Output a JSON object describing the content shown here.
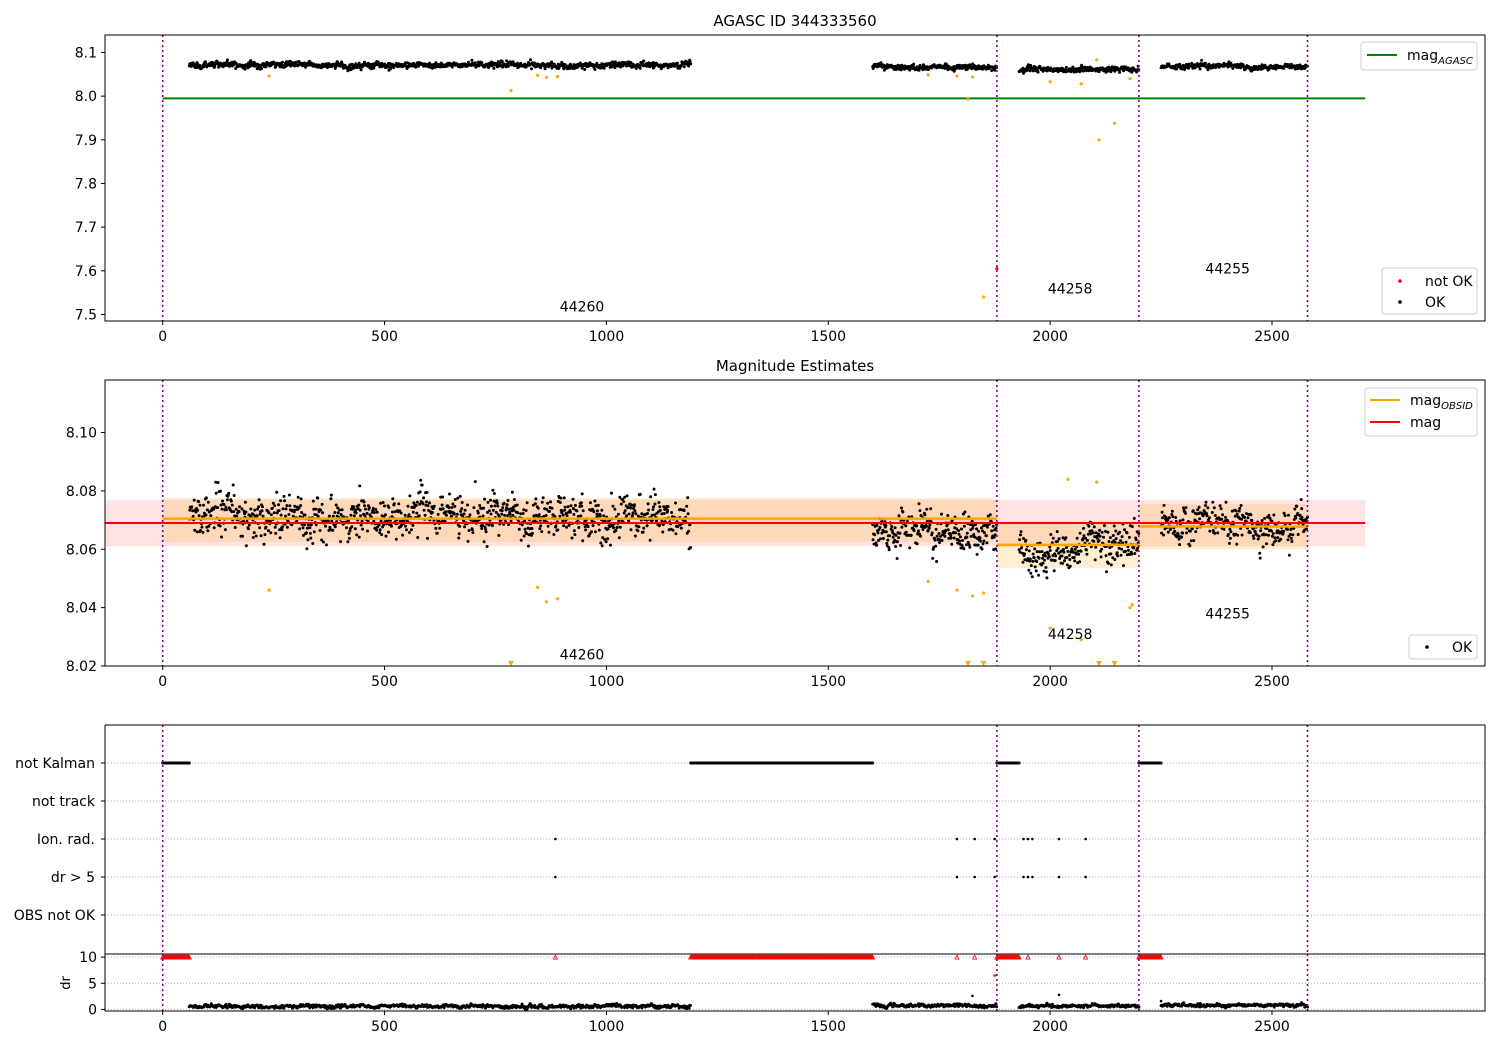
{
  "chart_data": [
    {
      "type": "scatter",
      "title": "AGASC ID 344333560",
      "xlabel": "",
      "ylabel": "",
      "xlim": [
        -130,
        2980
      ],
      "ylim": [
        7.485,
        8.14
      ],
      "xticks": [
        0,
        500,
        1000,
        1500,
        2000,
        2500
      ],
      "yticks": [
        7.5,
        7.6,
        7.7,
        7.8,
        7.9,
        8.0,
        8.1
      ],
      "ytick_labels": [
        "7.5",
        "7.6",
        "7.7",
        "7.8",
        "7.9",
        "8.0",
        "8.1"
      ],
      "obsid_boundaries": [
        0,
        1880,
        2200,
        2580
      ],
      "obsid_labels": [
        {
          "text": "44260",
          "x": 940,
          "y": 7.518
        },
        {
          "text": "44258",
          "x": 2040,
          "y": 7.56
        },
        {
          "text": "44255",
          "x": 2395,
          "y": 7.605
        }
      ],
      "mag_agasc": {
        "value": 7.995,
        "x_range": [
          0,
          2710
        ]
      },
      "ok_segments": [
        {
          "x_start": 60,
          "x_end": 1190,
          "base": 8.071,
          "amp": 0.006
        },
        {
          "x_start": 1600,
          "x_end": 1880,
          "base": 8.066,
          "amp": 0.005
        },
        {
          "x_start": 1930,
          "x_end": 2200,
          "base": 8.061,
          "amp": 0.006
        },
        {
          "x_start": 2250,
          "x_end": 2580,
          "base": 8.068,
          "amp": 0.005
        }
      ],
      "outlier_points": [
        {
          "x": 240,
          "y": 8.046
        },
        {
          "x": 785,
          "y": 8.013
        },
        {
          "x": 845,
          "y": 8.048
        },
        {
          "x": 865,
          "y": 8.043
        },
        {
          "x": 890,
          "y": 8.045
        },
        {
          "x": 1725,
          "y": 8.049
        },
        {
          "x": 1790,
          "y": 8.046
        },
        {
          "x": 1815,
          "y": 7.993
        },
        {
          "x": 1825,
          "y": 8.044
        },
        {
          "x": 1850,
          "y": 7.54
        },
        {
          "x": 2000,
          "y": 8.033
        },
        {
          "x": 2070,
          "y": 8.028
        },
        {
          "x": 2110,
          "y": 7.9
        },
        {
          "x": 2145,
          "y": 7.938
        },
        {
          "x": 2105,
          "y": 8.083
        },
        {
          "x": 2180,
          "y": 8.04
        }
      ],
      "not_ok_points": [
        {
          "x": 1880,
          "y": 7.605
        }
      ],
      "legend_upper": [
        {
          "label": "mag",
          "subscript": "AGASC",
          "color": "#008000"
        }
      ],
      "legend_lower": [
        {
          "label": "not OK",
          "color": "#ff0000"
        },
        {
          "label": "OK",
          "color": "#000000"
        }
      ]
    },
    {
      "type": "scatter",
      "title": "Magnitude Estimates",
      "xlabel": "",
      "ylabel": "",
      "xlim": [
        -130,
        2980
      ],
      "ylim": [
        8.02,
        8.118
      ],
      "xticks": [
        0,
        500,
        1000,
        1500,
        2000,
        2500
      ],
      "yticks": [
        8.02,
        8.04,
        8.06,
        8.08,
        8.1
      ],
      "ytick_labels": [
        "8.02",
        "8.04",
        "8.06",
        "8.08",
        "8.10"
      ],
      "obsid_boundaries": [
        0,
        1880,
        2200,
        2580
      ],
      "obsid_labels": [
        {
          "text": "44260",
          "x": 940,
          "y": 8.024
        },
        {
          "text": "44258",
          "x": 2040,
          "y": 8.031
        },
        {
          "text": "44255",
          "x": 2395,
          "y": 8.038
        }
      ],
      "mag": {
        "value": 8.069,
        "band": [
          8.061,
          8.077
        ],
        "x_range": [
          -130,
          2710
        ]
      },
      "mag_obsid": [
        {
          "x_range": [
            0,
            1880
          ],
          "value": 8.0705,
          "band": [
            8.0625,
            8.0775
          ]
        },
        {
          "x_range": [
            1880,
            2200
          ],
          "value": 8.0615,
          "band": [
            8.0535,
            8.0695
          ]
        },
        {
          "x_range": [
            2200,
            2580
          ],
          "value": 8.0678,
          "band": [
            8.06,
            8.0755
          ]
        }
      ],
      "ok_segments": [
        {
          "x_start": 60,
          "x_end": 1190,
          "base": 8.071,
          "amp": 0.006
        },
        {
          "x_start": 1600,
          "x_end": 1880,
          "base": 8.066,
          "amp": 0.005
        },
        {
          "x_start": 1930,
          "x_end": 2200,
          "base": 8.061,
          "amp": 0.006
        },
        {
          "x_start": 2250,
          "x_end": 2580,
          "base": 8.068,
          "amp": 0.005
        }
      ],
      "outlier_points": [
        {
          "x": 240,
          "y": 8.046
        },
        {
          "x": 845,
          "y": 8.047
        },
        {
          "x": 865,
          "y": 8.042
        },
        {
          "x": 890,
          "y": 8.043
        },
        {
          "x": 1725,
          "y": 8.049
        },
        {
          "x": 1790,
          "y": 8.046
        },
        {
          "x": 1825,
          "y": 8.044
        },
        {
          "x": 1850,
          "y": 8.045
        },
        {
          "x": 2000,
          "y": 8.033
        },
        {
          "x": 2040,
          "y": 8.084
        },
        {
          "x": 2070,
          "y": 8.029
        },
        {
          "x": 2105,
          "y": 8.083
        },
        {
          "x": 2180,
          "y": 8.04
        },
        {
          "x": 2185,
          "y": 8.041
        }
      ],
      "clipped_points": [
        {
          "x": 785,
          "y": 8.02
        },
        {
          "x": 1815,
          "y": 8.02
        },
        {
          "x": 1850,
          "y": 8.02
        },
        {
          "x": 2110,
          "y": 8.02
        },
        {
          "x": 2145,
          "y": 8.02
        }
      ],
      "legend_upper": [
        {
          "label": "mag",
          "subscript": "OBSID",
          "color": "#ffa500"
        },
        {
          "label": "mag",
          "subscript": "",
          "color": "#ff0000"
        }
      ],
      "legend_lower": [
        {
          "label": "OK",
          "color": "#000000"
        }
      ]
    },
    {
      "type": "scatter",
      "title": "",
      "xlabel": "",
      "ylabel": "",
      "xlim": [
        -130,
        2980
      ],
      "categories": [
        "not Kalman",
        "not track",
        "Ion. rad.",
        "dr > 5",
        "OBS not OK"
      ],
      "obsid_boundaries": [
        0,
        1880,
        2200,
        2580
      ],
      "flag_ranges": {
        "not Kalman": [
          [
            0,
            60
          ],
          [
            1190,
            1600
          ],
          [
            1880,
            1930
          ],
          [
            2200,
            2250
          ]
        ],
        "not track": [],
        "Ion. rad.": [
          [
            885,
            885
          ],
          [
            1790,
            1790
          ],
          [
            1830,
            1830
          ],
          [
            1875,
            1875
          ],
          [
            1940,
            1940
          ],
          [
            1950,
            1950
          ],
          [
            1960,
            1960
          ],
          [
            2020,
            2020
          ],
          [
            2080,
            2080
          ]
        ],
        "dr > 5": [
          [
            885,
            885
          ],
          [
            1790,
            1790
          ],
          [
            1830,
            1830
          ],
          [
            1875,
            1875
          ],
          [
            1940,
            1940
          ],
          [
            1950,
            1950
          ],
          [
            1960,
            1960
          ],
          [
            2020,
            2020
          ],
          [
            2080,
            2080
          ]
        ],
        "OBS not OK": []
      }
    },
    {
      "type": "scatter",
      "title": "",
      "xlabel": "",
      "ylabel": "dr",
      "xlim": [
        -130,
        2980
      ],
      "ylim": [
        -0.3,
        10.6
      ],
      "xticks": [
        0,
        500,
        1000,
        1500,
        2000,
        2500
      ],
      "yticks": [
        0,
        5,
        10
      ],
      "ytick_labels": [
        "0",
        "5",
        "10"
      ],
      "obsid_boundaries": [
        0,
        1880,
        2200,
        2580
      ],
      "clipped_dr_ranges": [
        [
          0,
          60
        ],
        [
          885,
          885
        ],
        [
          1190,
          1600
        ],
        [
          1790,
          1790
        ],
        [
          1830,
          1830
        ],
        [
          1880,
          1930
        ],
        [
          1950,
          1950
        ],
        [
          2020,
          2020
        ],
        [
          2080,
          2080
        ],
        [
          2200,
          2250
        ]
      ],
      "dr_segments": [
        {
          "x_start": 60,
          "x_end": 1190,
          "base": 0.6
        },
        {
          "x_start": 1600,
          "x_end": 1880,
          "base": 0.7
        },
        {
          "x_start": 1930,
          "x_end": 2200,
          "base": 0.6
        },
        {
          "x_start": 2250,
          "x_end": 2580,
          "base": 0.8
        }
      ],
      "dr_spikes": [
        {
          "x": 1825,
          "y": 2.6
        },
        {
          "x": 2020,
          "y": 2.8
        },
        {
          "x": 2250,
          "y": 1.6
        },
        {
          "x": 1875,
          "y": 6.5
        }
      ]
    }
  ]
}
